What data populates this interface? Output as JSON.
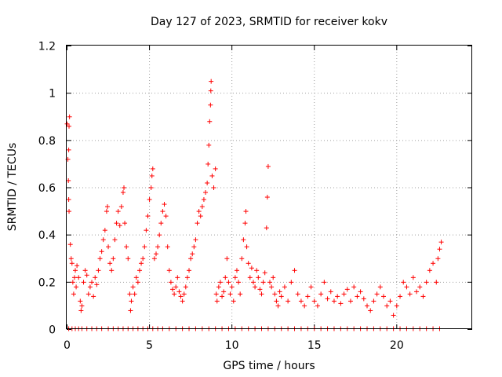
{
  "chart_data": {
    "type": "scatter",
    "title": "Day 127 of 2023, SRMTID for receiver kokv",
    "xlabel": "GPS time / hours",
    "ylabel": "SRMTID / TECUs",
    "xlim": [
      0,
      24.6
    ],
    "ylim": [
      0,
      1.2
    ],
    "xticks": [
      0,
      5,
      10,
      15,
      20
    ],
    "yticks": [
      0,
      0.2,
      0.4,
      0.6,
      0.8,
      1,
      1.2
    ],
    "xtick_labels": [
      "0",
      "5",
      "10",
      "15",
      "20"
    ],
    "ytick_labels": [
      "0",
      "0.2",
      "0.4",
      "0.6",
      "0.8",
      "1",
      "1.2"
    ],
    "grid": true,
    "marker": "+",
    "color": "#ff0000",
    "series": [
      {
        "name": "SRMTID",
        "points": [
          [
            0.0,
            0.87
          ],
          [
            0.05,
            0.72
          ],
          [
            0.08,
            0.63
          ],
          [
            0.1,
            0.55
          ],
          [
            0.12,
            0.5
          ],
          [
            0.1,
            0.76
          ],
          [
            0.15,
            0.9
          ],
          [
            0.12,
            0.86
          ],
          [
            0.2,
            0.36
          ],
          [
            0.25,
            0.3
          ],
          [
            0.3,
            0.28
          ],
          [
            0.35,
            0.2
          ],
          [
            0.4,
            0.15
          ],
          [
            0.45,
            0.22
          ],
          [
            0.5,
            0.25
          ],
          [
            0.55,
            0.18
          ],
          [
            0.6,
            0.27
          ],
          [
            0.7,
            0.22
          ],
          [
            0.8,
            0.12
          ],
          [
            0.85,
            0.08
          ],
          [
            0.9,
            0.1
          ],
          [
            1.0,
            0.2
          ],
          [
            1.1,
            0.25
          ],
          [
            1.2,
            0.23
          ],
          [
            1.3,
            0.15
          ],
          [
            1.4,
            0.18
          ],
          [
            1.5,
            0.2
          ],
          [
            1.6,
            0.14
          ],
          [
            1.7,
            0.22
          ],
          [
            1.8,
            0.19
          ],
          [
            1.9,
            0.25
          ],
          [
            2.0,
            0.3
          ],
          [
            2.1,
            0.33
          ],
          [
            2.2,
            0.38
          ],
          [
            2.3,
            0.42
          ],
          [
            2.4,
            0.5
          ],
          [
            2.45,
            0.52
          ],
          [
            2.5,
            0.35
          ],
          [
            2.6,
            0.28
          ],
          [
            2.7,
            0.25
          ],
          [
            2.8,
            0.3
          ],
          [
            2.9,
            0.38
          ],
          [
            3.0,
            0.45
          ],
          [
            3.1,
            0.5
          ],
          [
            3.2,
            0.44
          ],
          [
            3.3,
            0.52
          ],
          [
            3.4,
            0.58
          ],
          [
            3.45,
            0.6
          ],
          [
            3.5,
            0.45
          ],
          [
            3.6,
            0.35
          ],
          [
            3.7,
            0.3
          ],
          [
            3.8,
            0.15
          ],
          [
            3.85,
            0.08
          ],
          [
            3.9,
            0.12
          ],
          [
            4.0,
            0.18
          ],
          [
            4.1,
            0.15
          ],
          [
            4.2,
            0.22
          ],
          [
            4.3,
            0.2
          ],
          [
            4.4,
            0.25
          ],
          [
            4.5,
            0.28
          ],
          [
            4.6,
            0.3
          ],
          [
            4.7,
            0.35
          ],
          [
            4.8,
            0.42
          ],
          [
            4.9,
            0.48
          ],
          [
            5.0,
            0.55
          ],
          [
            5.1,
            0.6
          ],
          [
            5.15,
            0.65
          ],
          [
            5.2,
            0.68
          ],
          [
            5.3,
            0.3
          ],
          [
            5.4,
            0.32
          ],
          [
            5.5,
            0.35
          ],
          [
            5.6,
            0.4
          ],
          [
            5.7,
            0.45
          ],
          [
            5.8,
            0.5
          ],
          [
            5.9,
            0.53
          ],
          [
            6.0,
            0.48
          ],
          [
            6.1,
            0.35
          ],
          [
            6.2,
            0.25
          ],
          [
            6.3,
            0.2
          ],
          [
            6.4,
            0.17
          ],
          [
            6.5,
            0.15
          ],
          [
            6.6,
            0.18
          ],
          [
            6.7,
            0.22
          ],
          [
            6.8,
            0.16
          ],
          [
            6.9,
            0.14
          ],
          [
            7.0,
            0.12
          ],
          [
            7.1,
            0.15
          ],
          [
            7.2,
            0.18
          ],
          [
            7.3,
            0.22
          ],
          [
            7.4,
            0.25
          ],
          [
            7.5,
            0.3
          ],
          [
            7.6,
            0.32
          ],
          [
            7.7,
            0.35
          ],
          [
            7.8,
            0.38
          ],
          [
            7.9,
            0.45
          ],
          [
            8.0,
            0.5
          ],
          [
            8.1,
            0.48
          ],
          [
            8.2,
            0.52
          ],
          [
            8.3,
            0.55
          ],
          [
            8.4,
            0.58
          ],
          [
            8.5,
            0.62
          ],
          [
            8.55,
            0.7
          ],
          [
            8.6,
            0.78
          ],
          [
            8.65,
            0.88
          ],
          [
            8.7,
            0.95
          ],
          [
            8.72,
            1.01
          ],
          [
            8.74,
            1.05
          ],
          [
            8.8,
            0.65
          ],
          [
            8.9,
            0.6
          ],
          [
            9.0,
            0.68
          ],
          [
            9.05,
            0.15
          ],
          [
            9.1,
            0.12
          ],
          [
            9.2,
            0.18
          ],
          [
            9.3,
            0.2
          ],
          [
            9.4,
            0.14
          ],
          [
            9.5,
            0.16
          ],
          [
            9.6,
            0.22
          ],
          [
            9.7,
            0.3
          ],
          [
            9.8,
            0.2
          ],
          [
            9.9,
            0.15
          ],
          [
            10.0,
            0.18
          ],
          [
            10.1,
            0.12
          ],
          [
            10.2,
            0.22
          ],
          [
            10.3,
            0.25
          ],
          [
            10.4,
            0.2
          ],
          [
            10.5,
            0.15
          ],
          [
            10.6,
            0.3
          ],
          [
            10.7,
            0.38
          ],
          [
            10.8,
            0.45
          ],
          [
            10.85,
            0.5
          ],
          [
            10.9,
            0.35
          ],
          [
            11.0,
            0.28
          ],
          [
            11.1,
            0.22
          ],
          [
            11.2,
            0.26
          ],
          [
            11.3,
            0.2
          ],
          [
            11.4,
            0.18
          ],
          [
            11.5,
            0.25
          ],
          [
            11.6,
            0.22
          ],
          [
            11.7,
            0.17
          ],
          [
            11.8,
            0.15
          ],
          [
            11.9,
            0.2
          ],
          [
            12.0,
            0.24
          ],
          [
            12.1,
            0.43
          ],
          [
            12.15,
            0.56
          ],
          [
            12.2,
            0.69
          ],
          [
            12.3,
            0.2
          ],
          [
            12.4,
            0.18
          ],
          [
            12.5,
            0.22
          ],
          [
            12.6,
            0.15
          ],
          [
            12.7,
            0.12
          ],
          [
            12.8,
            0.1
          ],
          [
            12.9,
            0.16
          ],
          [
            13.0,
            0.14
          ],
          [
            13.2,
            0.18
          ],
          [
            13.4,
            0.12
          ],
          [
            13.6,
            0.2
          ],
          [
            13.8,
            0.25
          ],
          [
            14.0,
            0.15
          ],
          [
            14.2,
            0.12
          ],
          [
            14.4,
            0.1
          ],
          [
            14.6,
            0.14
          ],
          [
            14.8,
            0.18
          ],
          [
            15.0,
            0.12
          ],
          [
            15.2,
            0.1
          ],
          [
            15.4,
            0.15
          ],
          [
            15.6,
            0.2
          ],
          [
            15.8,
            0.13
          ],
          [
            16.0,
            0.16
          ],
          [
            16.2,
            0.12
          ],
          [
            16.4,
            0.14
          ],
          [
            16.6,
            0.11
          ],
          [
            16.8,
            0.15
          ],
          [
            17.0,
            0.17
          ],
          [
            17.2,
            0.12
          ],
          [
            17.4,
            0.18
          ],
          [
            17.6,
            0.14
          ],
          [
            17.8,
            0.16
          ],
          [
            18.0,
            0.13
          ],
          [
            18.2,
            0.1
          ],
          [
            18.4,
            0.08
          ],
          [
            18.6,
            0.12
          ],
          [
            18.8,
            0.15
          ],
          [
            19.0,
            0.18
          ],
          [
            19.2,
            0.14
          ],
          [
            19.4,
            0.1
          ],
          [
            19.6,
            0.12
          ],
          [
            19.8,
            0.06
          ],
          [
            20.0,
            0.1
          ],
          [
            20.2,
            0.14
          ],
          [
            20.4,
            0.2
          ],
          [
            20.6,
            0.18
          ],
          [
            20.8,
            0.15
          ],
          [
            21.0,
            0.22
          ],
          [
            21.2,
            0.16
          ],
          [
            21.4,
            0.18
          ],
          [
            21.6,
            0.14
          ],
          [
            21.8,
            0.2
          ],
          [
            22.0,
            0.25
          ],
          [
            22.2,
            0.28
          ],
          [
            22.4,
            0.2
          ],
          [
            22.5,
            0.3
          ],
          [
            22.6,
            0.34
          ],
          [
            22.7,
            0.37
          ]
        ]
      }
    ],
    "zero_points_x": [
      0.1,
      0.3,
      0.5,
      0.7,
      0.9,
      1.2,
      1.5,
      1.8,
      2.1,
      2.5,
      2.8,
      3.1,
      3.4,
      3.7,
      4.0,
      4.3,
      4.6,
      4.9,
      5.2,
      5.5,
      5.8,
      6.2,
      6.6,
      7.0,
      7.4,
      7.8,
      8.2,
      8.6,
      9.0,
      9.4,
      9.8,
      10.2,
      10.6,
      11.0,
      11.4,
      11.8,
      12.2,
      12.6,
      13.0,
      13.4,
      13.8,
      14.2,
      14.6,
      15.0,
      15.4,
      15.8,
      16.2,
      16.6,
      17.0,
      17.4,
      17.8,
      18.2,
      18.6,
      19.0,
      19.4,
      19.8,
      20.2,
      20.6,
      21.0,
      21.4,
      21.8,
      22.2,
      22.6
    ]
  }
}
